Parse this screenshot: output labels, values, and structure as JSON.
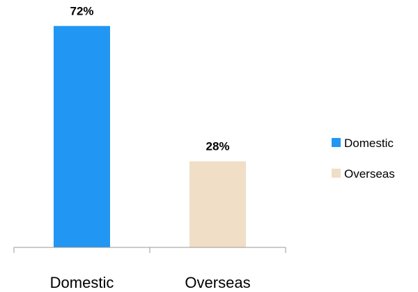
{
  "chart_data": {
    "type": "bar",
    "categories": [
      "Domestic",
      "Overseas"
    ],
    "values": [
      72,
      28
    ],
    "value_labels": [
      "72%",
      "28%"
    ],
    "colors": [
      "#2196F3",
      "#F0DEC7"
    ],
    "axis_color": "#999999",
    "title": "",
    "xlabel": "",
    "ylabel": "",
    "ylim": [
      0,
      80
    ],
    "grid": false,
    "legend": {
      "position": "right",
      "entries": [
        "Domestic",
        "Overseas"
      ]
    }
  }
}
